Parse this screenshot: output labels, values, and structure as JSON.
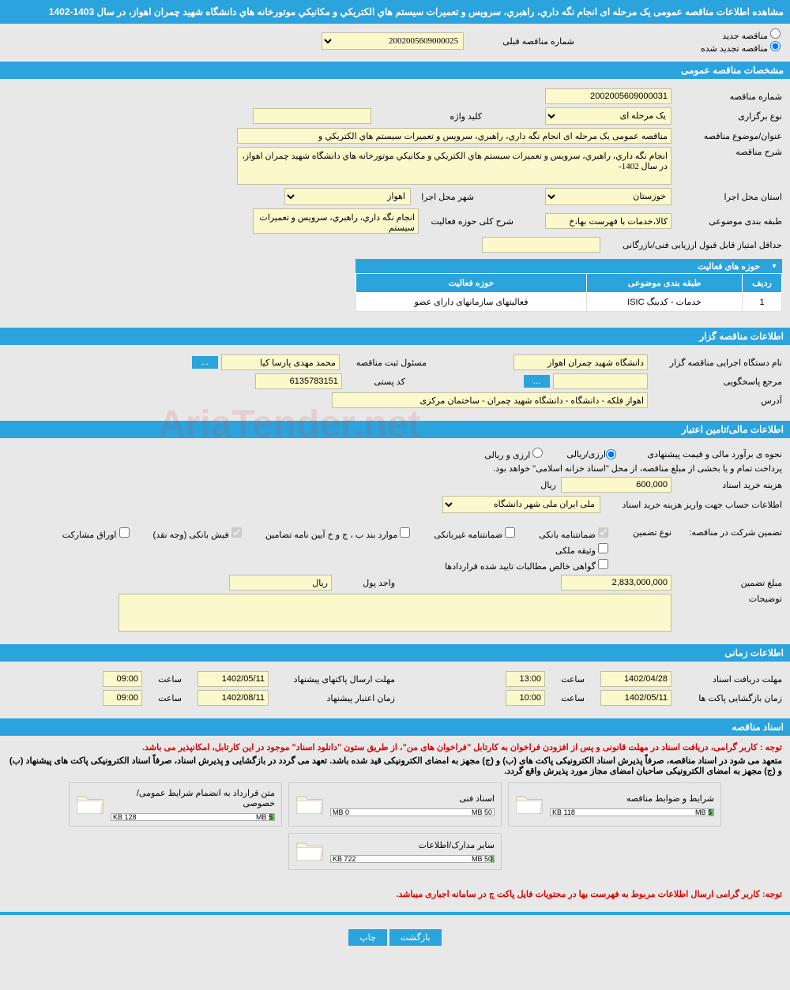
{
  "header": {
    "title": "مشاهده اطلاعات مناقصه عمومی یک مرحله ای انجام نگه داري، راهبري، سرويس و تعميرات سيستم هاي الكتريكي و مكانيكي موتورخانه هاي دانشگاه شهید چمران اهواز، در سال 1403-1402"
  },
  "tender_type": {
    "option1": "مناقصه جدید",
    "option2": "مناقصه تجدید شده",
    "prev_number_label": "شماره مناقصه قبلی",
    "prev_number": "2002005609000025"
  },
  "sections": {
    "general": "مشخصات مناقصه عمومی",
    "activities_header": "حوزه های فعالیت",
    "organizer": "اطلاعات مناقصه گزار",
    "financial": "اطلاعات مالی/تامین اعتبار",
    "timing": "اطلاعات زمانی",
    "documents": "اسناد مناقصه"
  },
  "general": {
    "number_label": "شماره مناقصه",
    "number": "2002005609000031",
    "type_label": "نوع برگزاری",
    "type_value": "یک مرحله ای",
    "keyword_label": "کلید واژه",
    "keyword": "",
    "title_label": "عنوان/موضوع مناقصه",
    "title_value": "مناقصه عمومی یک مرحله ای انجام نگه داري، راهبري، سرويس و تعميرات سيستم هاي الكتريكي و",
    "desc_label": "شرح مناقصه",
    "desc_value": "انجام نگه داري، راهبري، سرويس و تعميرات سيستم هاي الكتريكي و مكانيكي موتورخانه هاي دانشگاه شهید چمران اهواز، در سال 1402-",
    "province_label": "استان محل اجرا",
    "province_value": "خوزستان",
    "city_label": "شهر محل اجرا",
    "city_value": "اهواز",
    "category_label": "طبقه بندی موضوعی",
    "category_value": "کالا،خدمات با فهرست بها،خ",
    "activity_scope_label": "شرح کلی حوزه فعالیت",
    "activity_scope_value": "انجام نگه داري، راهبري، سرويس و تعميرات سيستم",
    "min_score_label": "حداقل امتیاز قابل قبول ارزیابی فنی/بازرگانی",
    "min_score_value": ""
  },
  "activities_table": {
    "col_row": "ردیف",
    "col_category": "طبقه بندی موضوعی",
    "col_field": "حوزه فعالیت",
    "rows": [
      {
        "n": "1",
        "category": "خدمات - کدینگ ISIC",
        "field": "فعاليتهای سازمانهای دارای عضو"
      }
    ]
  },
  "organizer": {
    "exec_label": "نام دستگاه اجرایی مناقصه گزار",
    "exec_value": "دانشگاه شهید چمران اهواز",
    "registrar_label": "مسئول ثبت مناقصه",
    "registrar_value": "محمد مهدی پارسا کیا",
    "responder_label": "مرجع پاسخگویی",
    "responder_value": "",
    "postal_label": "کد پستی",
    "postal_value": "6135783151",
    "address_label": "آدرس",
    "address_value": "اهواز فلکه - دانشگاه - دانشگاه شهید چمران - ساختمان مرکزی"
  },
  "financial": {
    "method_label": "نحوه ی برآورد مالی و قیمت پیشنهادی",
    "method_opt1": "ارزی/ریالی",
    "method_opt2": "ارزی و ریالی",
    "payment_note": "پرداخت تمام و یا بخشی از مبلغ مناقصه، از محل \"اسناد خزانه اسلامی\" خواهد بود.",
    "doc_fee_label": "هزینه خرید اسناد",
    "doc_fee_value": "600,000",
    "rial": "ریال",
    "account_label": "اطلاعات حساب جهت واریز هزینه خرید اسناد",
    "account_value": "ملی ایران ملی شهر دانشگاه",
    "guarantee_label": "تضمین شرکت در مناقصه:",
    "guarantee_type_label": "نوع تضمین",
    "g1": "ضمانتنامه بانکی",
    "g2": "ضمانتنامه غیربانکی",
    "g3": "موارد بند ب ، ج و خ آیین نامه تضامین",
    "g4": "فیش بانکی (وجه نقد)",
    "g5": "اوراق مشارکت",
    "g6": "وثیقه ملکی",
    "g7": "گواهی خالص مطالبات تایید شده قراردادها",
    "amount_label": "مبلغ تضمین",
    "amount_value": "2,833,000,000",
    "unit_label": "واحد پول",
    "unit_value": "ریال",
    "notes_label": "توضیحات",
    "notes_value": ""
  },
  "timing": {
    "receive_label": "مهلت دریافت اسناد",
    "receive_date": "1402/04/28",
    "receive_time_label": "ساعت",
    "receive_time": "13:00",
    "send_label": "مهلت ارسال پاکتهای پیشنهاد",
    "send_date": "1402/05/11",
    "send_time": "09:00",
    "open_label": "زمان بازگشایی پاکت ها",
    "open_date": "1402/05/11",
    "open_time": "10:00",
    "validity_label": "زمان اعتبار پیشنهاد",
    "validity_date": "1402/08/11",
    "validity_time": "09:00"
  },
  "documents": {
    "note1": "توجه : کاربر گرامی، دریافت اسناد در مهلت قانونی و پس از افزودن فراخوان به کارتابل \"فراخوان های من\"، از طریق ستون \"دانلود اسناد\" موجود در این کارتابل، امکانپذیر می باشد.",
    "note2": "متعهد می شود در اسناد مناقصه، صرفاً پذیرش اسناد الکترونیکی پاکت های (ب) و (ج) مجهز به امضای الکترونیکی قید شده باشد. تعهد می گردد در بازگشایی و پذیرش اسناد، صرفاً اسناد الکترونیکی پاکت های پیشنهاد (ب) و (ج) مجهز به امضای الکترونیکی صاحبان امضای مجاز مورد پذیرش واقع گردد.",
    "files": [
      {
        "title": "شرایط و ضوابط مناقصه",
        "used": "118 KB",
        "total": "5 MB",
        "fill": 3
      },
      {
        "title": "اسناد فنی",
        "used": "0 MB",
        "total": "50 MB",
        "fill": 0
      },
      {
        "title": "متن قرارداد به انضمام شرایط عمومی/خصوصی",
        "used": "128 KB",
        "total": "5 MB",
        "fill": 3
      },
      {
        "title": "سایر مدارک/اطلاعات",
        "used": "722 KB",
        "total": "50 MB",
        "fill": 2
      }
    ],
    "note3": "توجه: کاربر گرامی ارسال اطلاعات مربوط به فهرست بها در محتویات فایل پاکت ج در سامانه اجباری میباشد."
  },
  "buttons": {
    "back": "بازگشت",
    "print": "چاپ",
    "more": "..."
  },
  "watermark": "AriaTender.net"
}
